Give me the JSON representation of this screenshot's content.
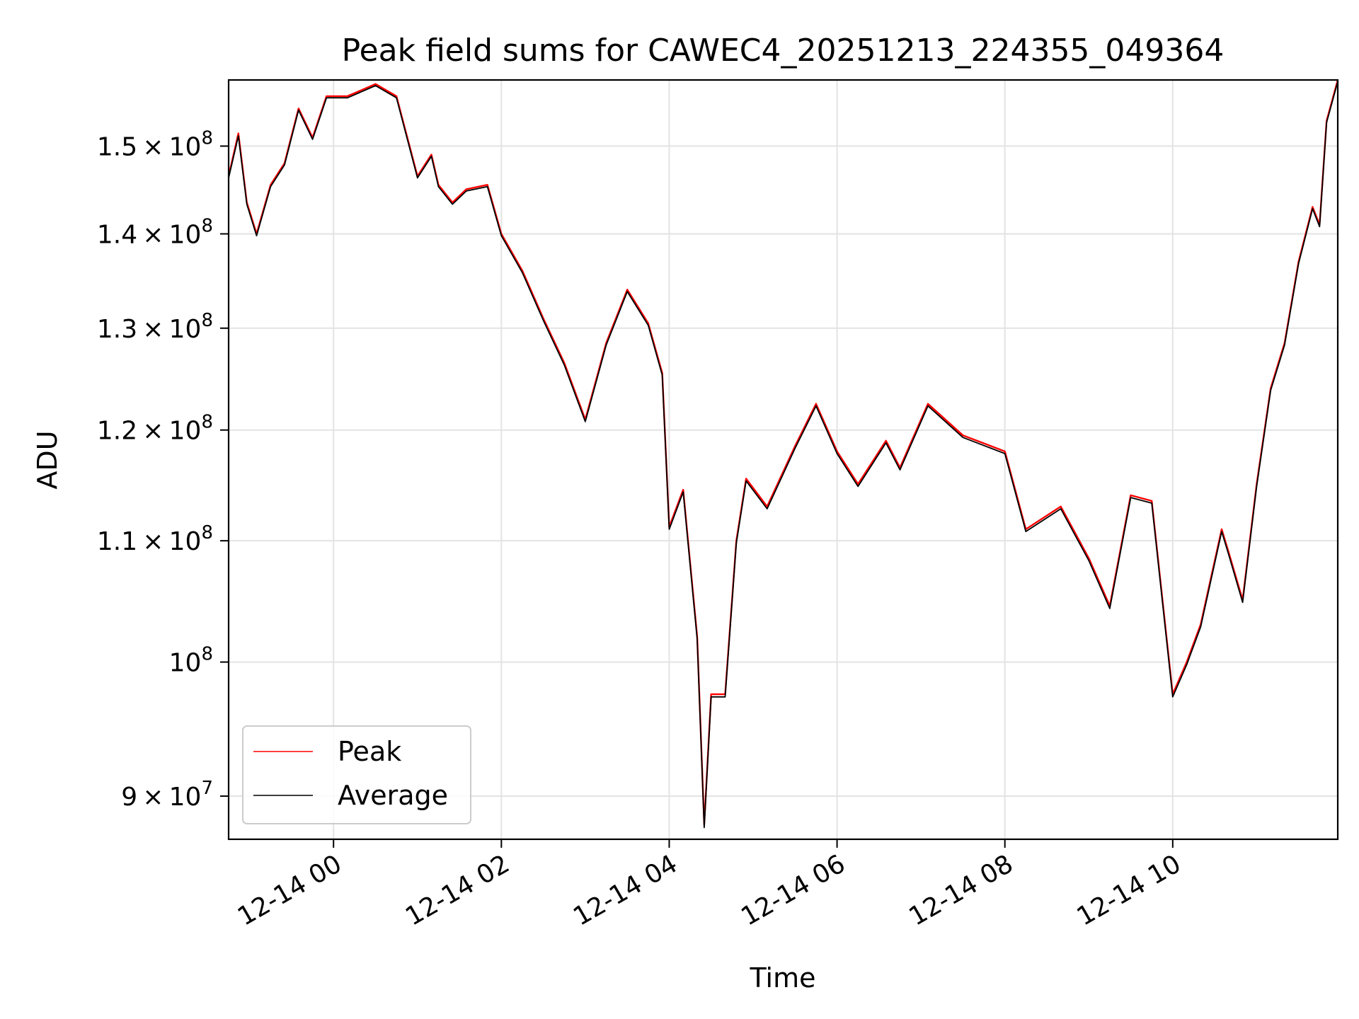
{
  "chart_data": {
    "type": "line",
    "title": "Peak field sums for CAWEC4_20251213_224355_049364",
    "xlabel": "Time",
    "ylabel": "ADU",
    "yscale": "log",
    "grid": true,
    "legend_position": "lower-left",
    "xlim": [
      "2025-12-13 22:45",
      "2025-12-14 11:58"
    ],
    "ylim": [
      87000000,
      158000000
    ],
    "x_ticks": [
      {
        "time": "2025-12-14 00:00",
        "label": "12-14 00"
      },
      {
        "time": "2025-12-14 02:00",
        "label": "12-14 02"
      },
      {
        "time": "2025-12-14 04:00",
        "label": "12-14 04"
      },
      {
        "time": "2025-12-14 06:00",
        "label": "12-14 06"
      },
      {
        "time": "2025-12-14 08:00",
        "label": "12-14 08"
      },
      {
        "time": "2025-12-14 10:00",
        "label": "12-14 10"
      }
    ],
    "y_ticks": [
      {
        "value": 90000000,
        "mantissa": "9",
        "exponent": "7"
      },
      {
        "value": 100000000,
        "mantissa": "",
        "exponent": "8"
      },
      {
        "value": 110000000,
        "mantissa": "1.1",
        "exponent": "8"
      },
      {
        "value": 120000000,
        "mantissa": "1.2",
        "exponent": "8"
      },
      {
        "value": 130000000,
        "mantissa": "1.3",
        "exponent": "8"
      },
      {
        "value": 140000000,
        "mantissa": "1.4",
        "exponent": "8"
      },
      {
        "value": 150000000,
        "mantissa": "1.5",
        "exponent": "8"
      }
    ],
    "x": [
      "2025-12-13 22:45",
      "2025-12-13 22:52",
      "2025-12-13 22:58",
      "2025-12-13 23:05",
      "2025-12-13 23:15",
      "2025-12-13 23:25",
      "2025-12-13 23:35",
      "2025-12-13 23:45",
      "2025-12-13 23:55",
      "2025-12-14 00:10",
      "2025-12-14 00:30",
      "2025-12-14 00:45",
      "2025-12-14 01:00",
      "2025-12-14 01:10",
      "2025-12-14 01:15",
      "2025-12-14 01:25",
      "2025-12-14 01:35",
      "2025-12-14 01:50",
      "2025-12-14 02:00",
      "2025-12-14 02:15",
      "2025-12-14 02:30",
      "2025-12-14 02:45",
      "2025-12-14 03:00",
      "2025-12-14 03:15",
      "2025-12-14 03:30",
      "2025-12-14 03:45",
      "2025-12-14 03:55",
      "2025-12-14 04:00",
      "2025-12-14 04:10",
      "2025-12-14 04:20",
      "2025-12-14 04:25",
      "2025-12-14 04:30",
      "2025-12-14 04:40",
      "2025-12-14 04:48",
      "2025-12-14 04:55",
      "2025-12-14 05:10",
      "2025-12-14 05:30",
      "2025-12-14 05:45",
      "2025-12-14 06:00",
      "2025-12-14 06:15",
      "2025-12-14 06:35",
      "2025-12-14 06:45",
      "2025-12-14 07:05",
      "2025-12-14 07:30",
      "2025-12-14 08:00",
      "2025-12-14 08:15",
      "2025-12-14 08:40",
      "2025-12-14 09:00",
      "2025-12-14 09:15",
      "2025-12-14 09:30",
      "2025-12-14 09:45",
      "2025-12-14 10:00",
      "2025-12-14 10:10",
      "2025-12-14 10:20",
      "2025-12-14 10:35",
      "2025-12-14 10:40",
      "2025-12-14 10:50",
      "2025-12-14 11:00",
      "2025-12-14 11:10",
      "2025-12-14 11:20",
      "2025-12-14 11:30",
      "2025-12-14 11:40",
      "2025-12-14 11:45",
      "2025-12-14 11:50",
      "2025-12-14 11:58"
    ],
    "series": [
      {
        "name": "Peak",
        "color": "#ff0000",
        "values": [
          146500000,
          151500000,
          143500000,
          140000000,
          145500000,
          148000000,
          154500000,
          151000000,
          156000000,
          156000000,
          157500000,
          156000000,
          146500000,
          149000000,
          145500000,
          143500000,
          145000000,
          145500000,
          140000000,
          136000000,
          131000000,
          126500000,
          121000000,
          128500000,
          134000000,
          130500000,
          125500000,
          111200000,
          114500000,
          102000000,
          88000000,
          97500000,
          97500000,
          110000000,
          115500000,
          113000000,
          118500000,
          122500000,
          118000000,
          115000000,
          119000000,
          116500000,
          122500000,
          119500000,
          118000000,
          111000000,
          113000000,
          108500000,
          104500000,
          114000000,
          113500000,
          97500000,
          100000000,
          103000000,
          111000000,
          109000000,
          105000000,
          115000000,
          124000000,
          128500000,
          137000000,
          143000000,
          141000000,
          153000000,
          158000000
        ]
      },
      {
        "name": "Average",
        "color": "#000000",
        "values": [
          146300000,
          151200000,
          143300000,
          139800000,
          145300000,
          147800000,
          154300000,
          150800000,
          155800000,
          155800000,
          157300000,
          155800000,
          146300000,
          148800000,
          145300000,
          143300000,
          144800000,
          145300000,
          139800000,
          135800000,
          130800000,
          126300000,
          120800000,
          128300000,
          133800000,
          130300000,
          125300000,
          111000000,
          114300000,
          101800000,
          87800000,
          97300000,
          97300000,
          109800000,
          115300000,
          112800000,
          118300000,
          122300000,
          117800000,
          114800000,
          118800000,
          116300000,
          122300000,
          119300000,
          117800000,
          110800000,
          112800000,
          108300000,
          104300000,
          113800000,
          113300000,
          97300000,
          99800000,
          102800000,
          110800000,
          108800000,
          104800000,
          114800000,
          123800000,
          128300000,
          136800000,
          142800000,
          140800000,
          152800000,
          157800000
        ]
      }
    ]
  }
}
